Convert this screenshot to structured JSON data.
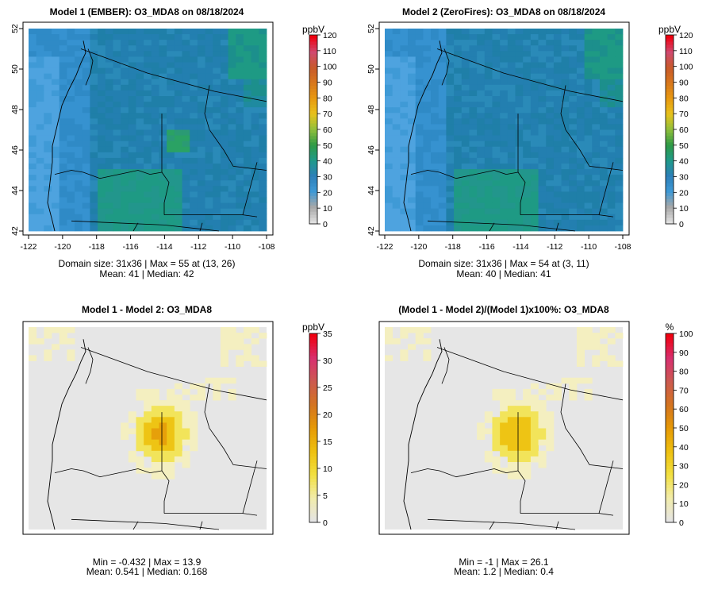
{
  "chart_data": [
    {
      "type": "heatmap",
      "title": "Model 1 (EMBER): O3_MDA8 on 08/18/2024",
      "x_ticks": [
        "-122",
        "-120",
        "-118",
        "-116",
        "-114",
        "-112",
        "-110",
        "-108"
      ],
      "y_ticks": [
        "42",
        "44",
        "46",
        "48",
        "50",
        "52"
      ],
      "xlim": [
        -122,
        -108
      ],
      "ylim": [
        42,
        52
      ],
      "legend": {
        "unit": "ppbV",
        "min": 0,
        "max": 120,
        "ticks": [
          "0",
          "10",
          "20",
          "30",
          "40",
          "50",
          "60",
          "70",
          "80",
          "90",
          "100",
          "110",
          "120"
        ],
        "placement": "right"
      },
      "stats": {
        "line1": "Domain size: 31x36 | Max = 55 at (13, 26)",
        "line2": "Mean: 41 |  Median: 42"
      }
    },
    {
      "type": "heatmap",
      "title": "Model 2 (ZeroFires): O3_MDA8 on 08/18/2024",
      "x_ticks": [
        "-122",
        "-120",
        "-118",
        "-116",
        "-114",
        "-112",
        "-110",
        "-108"
      ],
      "y_ticks": [
        "42",
        "44",
        "46",
        "48",
        "50",
        "52"
      ],
      "xlim": [
        -122,
        -108
      ],
      "ylim": [
        42,
        52
      ],
      "legend": {
        "unit": "ppbV",
        "min": 0,
        "max": 120,
        "ticks": [
          "0",
          "10",
          "20",
          "30",
          "40",
          "50",
          "60",
          "70",
          "80",
          "90",
          "100",
          "110",
          "120"
        ],
        "placement": "right"
      },
      "stats": {
        "line1": "Domain size: 31x36 | Max = 54 at (3, 11)",
        "line2": "Mean: 40 |  Median: 41"
      }
    },
    {
      "type": "heatmap",
      "title": "Model 1 - Model 2: O3_MDA8",
      "legend": {
        "unit": "ppbV",
        "min": 0,
        "max": 35,
        "ticks": [
          "0",
          "5",
          "10",
          "15",
          "20",
          "25",
          "30",
          "35"
        ],
        "placement": "right"
      },
      "stats": {
        "line1": "Min = -0.432 | Max = 13.9",
        "line2": "Mean: 0.541 |  Median: 0.168"
      }
    },
    {
      "type": "heatmap",
      "title": "(Model 1 - Model 2)/(Model 1)x100%: O3_MDA8",
      "legend": {
        "unit": "%",
        "min": 0,
        "max": 100,
        "ticks": [
          "0",
          "10",
          "20",
          "30",
          "40",
          "50",
          "60",
          "70",
          "80",
          "90",
          "100"
        ],
        "placement": "right"
      },
      "stats": {
        "line1": "Min = -1 | Max = 26.1",
        "line2": "Mean: 1.2 |  Median: 0.4"
      }
    }
  ],
  "colors": {
    "abs_scale": [
      "#e0e0e0",
      "#a8a8a8",
      "#3f9ad6",
      "#2d7fb8",
      "#1f9a8a",
      "#2e9a46",
      "#8fbf3c",
      "#e8c21c",
      "#e89a10",
      "#d8781c",
      "#c85a2a",
      "#d04a70",
      "#f00010"
    ],
    "diff_scale": [
      "#e4e4e4",
      "#f2ecaa",
      "#f2e040",
      "#eec010",
      "#e69a06",
      "#d47420",
      "#cc5a50",
      "#d83070",
      "#f00010"
    ],
    "cell_base": "#2e86c1",
    "cell_mid": "#1f7fa8",
    "cell_teal": "#1e9a84"
  }
}
